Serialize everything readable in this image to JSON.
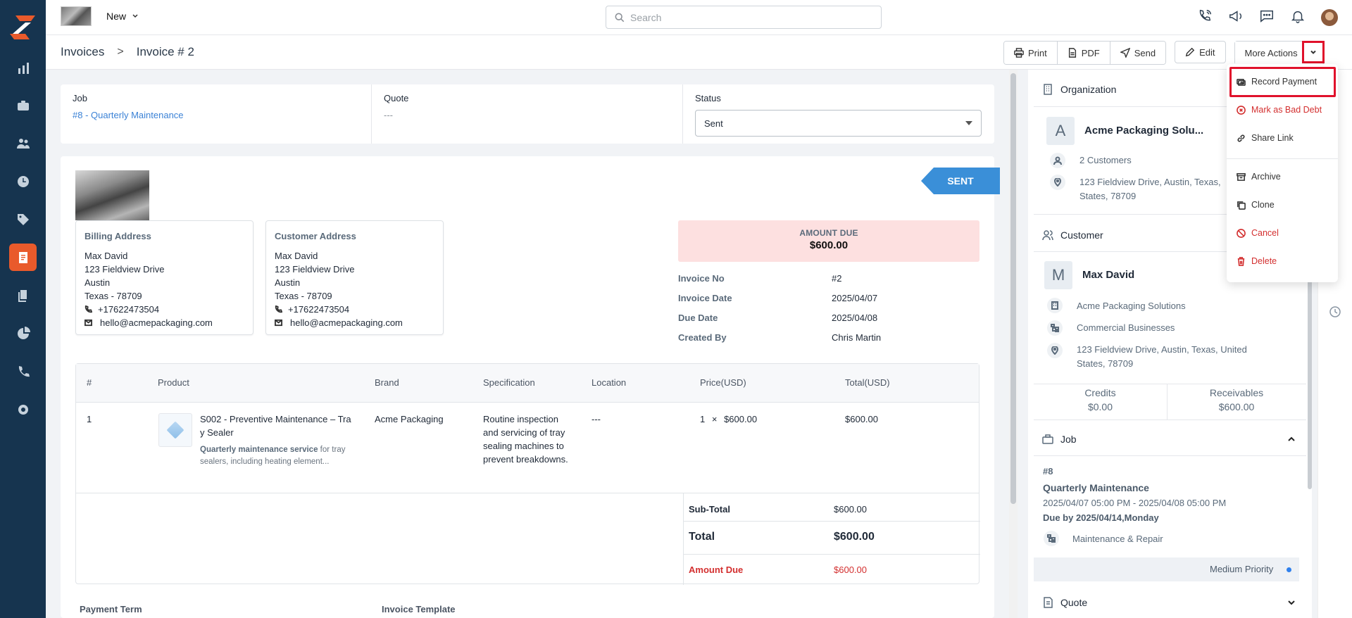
{
  "topbar": {
    "new_label": "New",
    "search_placeholder": "Search"
  },
  "breadcrumb": {
    "root": "Invoices",
    "separator": ">",
    "current": "Invoice # 2"
  },
  "actions": {
    "print": "Print",
    "pdf": "PDF",
    "send": "Send",
    "edit": "Edit",
    "more": "More Actions"
  },
  "summary": {
    "job_label": "Job",
    "job_value": "#8 - Quarterly Maintenance",
    "quote_label": "Quote",
    "quote_value": "---",
    "status_label": "Status",
    "status_value": "Sent"
  },
  "ribbon": "SENT",
  "billing": {
    "title": "Billing Address",
    "name": "Max David",
    "street": "123 Fieldview Drive",
    "city": "Austin",
    "state_zip": "Texas - 78709",
    "phone": "+17622473504",
    "email": "hello@acmepackaging.com"
  },
  "customer_addr": {
    "title": "Customer Address",
    "name": "Max David",
    "street": "123 Fieldview Drive",
    "city": "Austin",
    "state_zip": "Texas - 78709",
    "phone": "+17622473504",
    "email": "hello@acmepackaging.com"
  },
  "amount_due": {
    "label": "AMOUNT DUE",
    "value": "$600.00"
  },
  "meta": {
    "invoice_no_label": "Invoice No",
    "invoice_no": "#2",
    "invoice_date_label": "Invoice Date",
    "invoice_date": "2025/04/07",
    "due_date_label": "Due Date",
    "due_date": "2025/04/08",
    "created_by_label": "Created By",
    "created_by": "Chris Martin"
  },
  "table": {
    "headers": [
      "#",
      "Product",
      "Brand",
      "Specification",
      "Location",
      "Price(USD)",
      "Total(USD)"
    ],
    "row": {
      "num": "1",
      "product_line1": "S002 - Preventive Maintenance – Tra",
      "product_line2": "y Sealer",
      "desc_bold": "Quarterly maintenance service",
      "desc_rest": " for tray",
      "desc_line2": "sealers, including heating element...",
      "brand": "Acme Packaging",
      "spec1": "Routine inspection",
      "spec2": "and servicing of tray",
      "spec3": "sealing machines to",
      "spec4": "prevent breakdowns.",
      "location": "---",
      "qty": "1",
      "times": "×",
      "price": "$600.00",
      "total": "$600.00"
    },
    "subtotal_label": "Sub-Total",
    "subtotal": "$600.00",
    "total_label": "Total",
    "total": "$600.00",
    "amount_due_label": "Amount Due",
    "amount_due": "$600.00"
  },
  "footer": {
    "payment_term": "Payment Term",
    "invoice_template": "Invoice Template"
  },
  "right": {
    "org_title": "Organization",
    "org_letter": "A",
    "org_name": "Acme Packaging Solu...",
    "org_customers": "2 Customers",
    "org_addr1": "123 Fieldview Drive, Austin, Texas,",
    "org_addr2": "States, 78709",
    "cust_title": "Customer",
    "cust_letter": "M",
    "cust_name": "Max David",
    "cust_org": "Acme Packaging Solutions",
    "cust_type": "Commercial Businesses",
    "cust_addr1": "123 Fieldview Drive, Austin, Texas, United",
    "cust_addr2": "States, 78709",
    "credits_label": "Credits",
    "credits": "$0.00",
    "receivables_label": "Receivables",
    "receivables": "$600.00",
    "job_title": "Job",
    "job_num": "#8",
    "job_name": "Quarterly Maintenance",
    "job_time": "2025/04/07 05:00 PM - 2025/04/08 05:00 PM",
    "job_due": "Due by 2025/04/14,Monday",
    "job_type": "Maintenance & Repair",
    "job_priority": "Medium Priority",
    "quote_title": "Quote"
  },
  "menu": {
    "record_payment": "Record Payment",
    "bad_debt": "Mark as Bad Debt",
    "share": "Share Link",
    "archive": "Archive",
    "clone": "Clone",
    "cancel": "Cancel",
    "delete": "Delete"
  },
  "colors": {
    "sidebar": "#16344f",
    "accent": "#e95a2b",
    "link": "#3b82d6",
    "danger": "#d32f2f"
  }
}
